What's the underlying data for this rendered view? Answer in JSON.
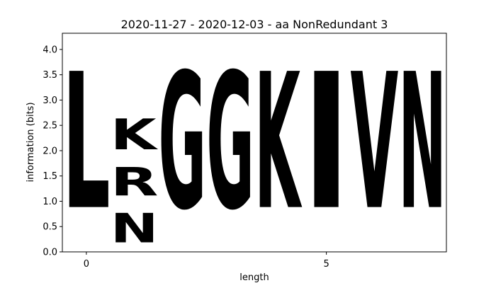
{
  "chart_data": {
    "type": "sequence_logo",
    "title": "2020-11-27 - 2020-12-03 - aa NonRedundant 3",
    "xlabel": "length",
    "ylabel": "information (bits)",
    "ylim": [
      0,
      4.32
    ],
    "xlim": [
      -0.5,
      7.5
    ],
    "xticks": [
      0,
      5
    ],
    "yticks": [
      0.0,
      0.5,
      1.0,
      1.5,
      2.0,
      2.5,
      3.0,
      3.5,
      4.0
    ],
    "grid": false,
    "legend": "none",
    "colors": {
      "L": "#000000",
      "I": "#000000",
      "V": "#000000",
      "N": "#d21fc4",
      "R": "#0a1ec1",
      "K": "#0a1ec1",
      "G": "#20dc35"
    },
    "positions": [
      {
        "x": 0,
        "letters": [
          {
            "letter": "L",
            "height": 4.32
          }
        ]
      },
      {
        "x": 1,
        "letters": [
          {
            "letter": "N",
            "height": 0.93
          },
          {
            "letter": "R",
            "height": 0.9
          },
          {
            "letter": "K",
            "height": 0.97
          }
        ]
      },
      {
        "x": 2,
        "letters": [
          {
            "letter": "G",
            "height": 4.32
          }
        ]
      },
      {
        "x": 3,
        "letters": [
          {
            "letter": "G",
            "height": 4.32
          }
        ]
      },
      {
        "x": 4,
        "letters": [
          {
            "letter": "K",
            "height": 4.32
          }
        ]
      },
      {
        "x": 5,
        "letters": [
          {
            "letter": "I",
            "height": 4.32
          }
        ]
      },
      {
        "x": 6,
        "letters": [
          {
            "letter": "V",
            "height": 4.32
          }
        ]
      },
      {
        "x": 7,
        "letters": [
          {
            "letter": "N",
            "height": 4.32
          }
        ]
      }
    ]
  }
}
